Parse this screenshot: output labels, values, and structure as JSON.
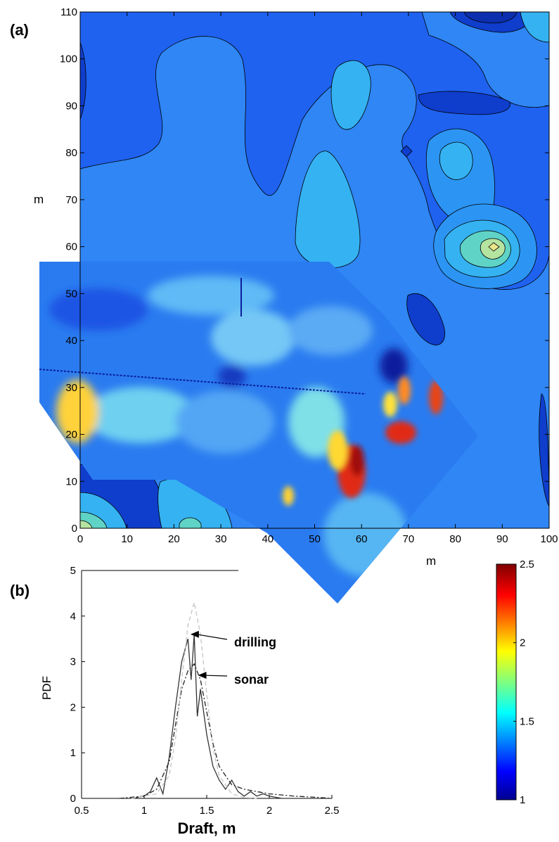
{
  "chart_data": [
    {
      "panel": "(a)",
      "type": "heatmap",
      "title": "",
      "xlabel": "m",
      "ylabel": "m",
      "xlim": [
        0,
        100
      ],
      "ylim": [
        0,
        110
      ],
      "x_ticks": [
        0,
        10,
        20,
        30,
        40,
        50,
        60,
        70,
        80,
        90,
        100
      ],
      "y_ticks": [
        0,
        10,
        20,
        30,
        40,
        50,
        60,
        70,
        80,
        90,
        100,
        110
      ],
      "y_tick_labels": [
        "0",
        "10",
        "20",
        "30",
        "40",
        "50",
        "60",
        "70",
        "80",
        "90",
        "100",
        "110"
      ],
      "x_tick_labels": [
        "0",
        "10",
        "20",
        "30",
        "40",
        "50",
        "60",
        "70",
        "80",
        "90",
        "100"
      ],
      "contour_features": [
        {
          "x": 89,
          "y": 60,
          "peak": 2.0
        },
        {
          "x": 80,
          "y": 80,
          "peak": 1.55
        },
        {
          "x": 93,
          "y": 95,
          "peak": 1.45
        },
        {
          "x": 23,
          "y": 1,
          "peak": 1.6
        },
        {
          "x": 2,
          "y": 2,
          "peak": 1.7
        }
      ],
      "sonar_hotspots": [
        {
          "x": 58,
          "y": 12,
          "value": 2.3
        },
        {
          "x": 67,
          "y": 21,
          "value": 2.3
        },
        {
          "x": 71,
          "y": 30,
          "value": 2.2
        },
        {
          "x": 76,
          "y": 28,
          "value": 2.1
        },
        {
          "x": 43,
          "y": 7,
          "value": 1.9
        }
      ]
    },
    {
      "panel": "(b)",
      "type": "line",
      "title": "",
      "xlabel": "Draft, m",
      "ylabel": "PDF",
      "xlim": [
        0.5,
        2.5
      ],
      "ylim": [
        0,
        5
      ],
      "x_ticks": [
        0.5,
        1,
        1.5,
        2,
        2.5
      ],
      "x_tick_labels": [
        "0.5",
        "1",
        "1.5",
        "2",
        "2.5"
      ],
      "y_ticks": [
        0,
        1,
        2,
        3,
        4,
        5
      ],
      "y_tick_labels": [
        "0",
        "1",
        "2",
        "3",
        "4",
        "5"
      ],
      "series": [
        {
          "name": "",
          "style": "solid",
          "x": [
            0.9,
            1.0,
            1.05,
            1.1,
            1.15,
            1.2,
            1.25,
            1.3,
            1.35,
            1.375,
            1.4,
            1.425,
            1.45,
            1.5,
            1.55,
            1.6,
            1.65,
            1.7,
            1.75,
            1.8,
            1.85,
            1.9,
            1.95,
            2.0,
            2.1
          ],
          "y": [
            0.0,
            0.05,
            0.15,
            0.45,
            0.1,
            0.9,
            2.0,
            3.0,
            3.5,
            2.6,
            3.6,
            1.8,
            2.4,
            1.4,
            0.7,
            0.4,
            0.2,
            0.4,
            0.15,
            0.05,
            0.15,
            0.05,
            0.1,
            0.05,
            0.0
          ]
        },
        {
          "name": "",
          "style": "dashdot",
          "x": [
            0.8,
            1.0,
            1.1,
            1.2,
            1.25,
            1.3,
            1.35,
            1.4,
            1.45,
            1.5,
            1.55,
            1.6,
            1.7,
            1.8,
            1.9,
            2.0,
            2.2,
            2.4,
            2.5
          ],
          "y": [
            0.0,
            0.05,
            0.2,
            0.8,
            1.6,
            2.4,
            2.8,
            2.95,
            2.6,
            1.9,
            1.2,
            0.7,
            0.3,
            0.2,
            0.15,
            0.1,
            0.05,
            0.02,
            0.0
          ]
        },
        {
          "name": "",
          "style": "dashed-gray",
          "x": [
            0.9,
            1.1,
            1.2,
            1.25,
            1.3,
            1.35,
            1.4,
            1.45,
            1.5,
            1.55,
            1.6,
            1.7,
            1.8,
            1.9
          ],
          "y": [
            0.0,
            0.1,
            0.5,
            1.3,
            2.6,
            3.8,
            4.3,
            3.6,
            2.3,
            1.1,
            0.5,
            0.1,
            0.02,
            0.0
          ]
        }
      ],
      "annotations": [
        {
          "text": "drilling",
          "x": 1.37,
          "y": 3.6
        },
        {
          "text": "sonar",
          "x": 1.43,
          "y": 2.7
        }
      ]
    }
  ],
  "colorbar": {
    "min": 1,
    "max": 2.5,
    "tick_values": [
      1,
      1.5,
      2,
      2.5
    ],
    "tick_labels": [
      "1",
      "1.5",
      "2",
      "2.5"
    ]
  },
  "labels": {
    "panel_a": "(a)",
    "panel_b": "(b)",
    "a_ylabel": "m",
    "a_xlabel": "m",
    "b_ylabel": "PDF",
    "b_xlabel": "Draft, m",
    "anno_drilling": "drilling",
    "anno_sonar": "sonar"
  }
}
